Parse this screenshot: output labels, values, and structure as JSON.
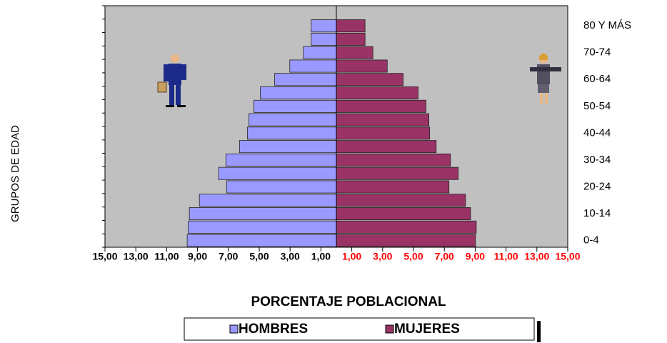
{
  "chart_data": {
    "type": "pyramid",
    "title": "PORCENTAJE POBLACIONAL",
    "y_axis_label": "GRUPOS DE EDAD",
    "categories": [
      "0-4",
      null,
      "10-14",
      null,
      "20-24",
      null,
      "30-34",
      null,
      "40-44",
      null,
      "50-54",
      null,
      "60-64",
      null,
      "70-74",
      null,
      "80 Y MÁS"
    ],
    "series": [
      {
        "name": "HOMBRES",
        "color": "#9999ff",
        "values": [
          -9.67,
          -9.6,
          -9.53,
          -8.88,
          -7.12,
          -7.63,
          -7.16,
          -6.28,
          -5.77,
          -5.67,
          -5.35,
          -4.93,
          -4.0,
          -3.02,
          -2.14,
          -1.63,
          -1.63
        ]
      },
      {
        "name": "MUJERES",
        "color": "#993366",
        "values": [
          9.02,
          9.07,
          8.7,
          8.37,
          7.3,
          7.9,
          7.4,
          6.47,
          6.05,
          6.0,
          5.81,
          5.3,
          4.33,
          3.3,
          2.37,
          1.86,
          1.86
        ]
      }
    ],
    "xlim": [
      -15,
      15
    ],
    "xticks": [
      {
        "value": -15,
        "label": "15,00",
        "color": "#000000"
      },
      {
        "value": -13,
        "label": "13,00",
        "color": "#000000"
      },
      {
        "value": -11,
        "label": "11,00",
        "color": "#000000"
      },
      {
        "value": -9,
        "label": "9,00",
        "color": "#000000"
      },
      {
        "value": -7,
        "label": "7,00",
        "color": "#000000"
      },
      {
        "value": -5,
        "label": "5,00",
        "color": "#000000"
      },
      {
        "value": -3,
        "label": "3,00",
        "color": "#000000"
      },
      {
        "value": -1,
        "label": "1,00",
        "color": "#000000"
      },
      {
        "value": 1,
        "label": "1,00",
        "color": "#ff0000"
      },
      {
        "value": 3,
        "label": "3,00",
        "color": "#ff0000"
      },
      {
        "value": 5,
        "label": "5,00",
        "color": "#ff0000"
      },
      {
        "value": 7,
        "label": "7,00",
        "color": "#ff0000"
      },
      {
        "value": 9,
        "label": "9,00",
        "color": "#ff0000"
      },
      {
        "value": 11,
        "label": "11,00",
        "color": "#ff0000"
      },
      {
        "value": 13,
        "label": "13,00",
        "color": "#ff0000"
      },
      {
        "value": 15,
        "label": "15,00",
        "color": "#ff0000"
      }
    ],
    "plot_background": "#c0c0c0"
  }
}
